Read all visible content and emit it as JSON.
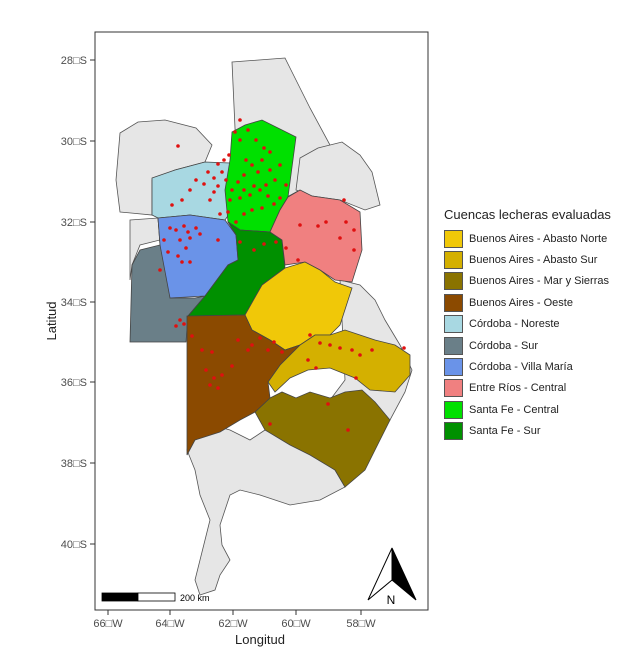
{
  "axes": {
    "xlabel": "Longitud",
    "ylabel": "Latitud",
    "x_ticks": [
      "66□W",
      "64□W",
      "62□W",
      "60□W",
      "58□W"
    ],
    "y_ticks": [
      "28□S",
      "30□S",
      "32□S",
      "34□S",
      "36□S",
      "38□S",
      "40□S"
    ]
  },
  "scale_bar": {
    "label": "200 km"
  },
  "north_arrow": {
    "label": "N"
  },
  "legend": {
    "title": "Cuencas lecheras evaluadas",
    "placement": "right",
    "items": [
      {
        "label": "Buenos Aires - Abasto Norte",
        "color": "#f0c808"
      },
      {
        "label": "Buenos Aires - Abasto Sur",
        "color": "#d4b000"
      },
      {
        "label": "Buenos Aires - Mar y Sierras",
        "color": "#8a7300"
      },
      {
        "label": "Buenos Aires - Oeste",
        "color": "#8b4a00"
      },
      {
        "label": "Córdoba - Noreste",
        "color": "#a8d8e2"
      },
      {
        "label": "Córdoba - Sur",
        "color": "#6a7f88"
      },
      {
        "label": "Córdoba - Villa María",
        "color": "#6a93e8"
      },
      {
        "label": "Entre Ríos - Central",
        "color": "#f08080"
      },
      {
        "label": "Santa Fe - Central",
        "color": "#00e000"
      },
      {
        "label": "Santa Fe - Sur",
        "color": "#009000"
      }
    ]
  },
  "colors": {
    "province_fill": "#e6e6e6",
    "province_border": "#555555",
    "point_color": "#e01010",
    "panel_border": "#333333"
  }
}
